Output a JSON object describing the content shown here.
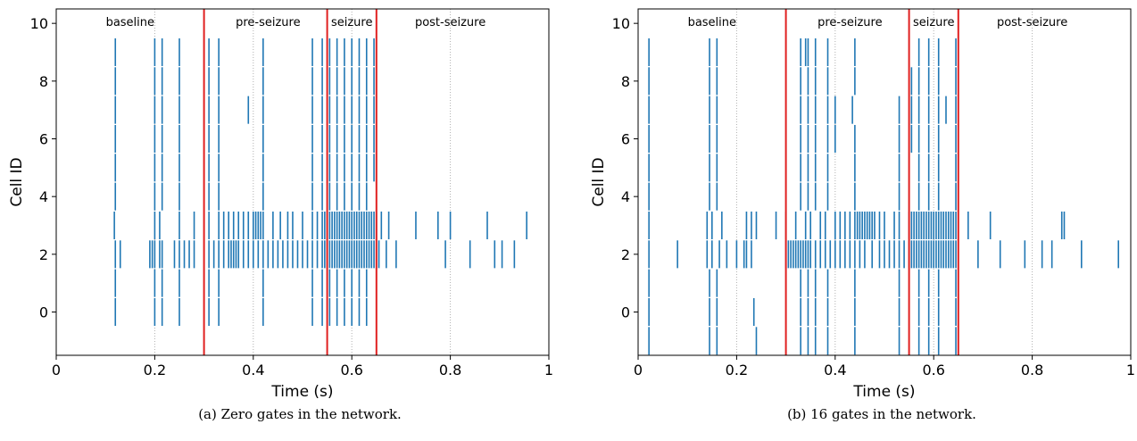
{
  "chart_data": [
    {
      "type": "scatter",
      "subtype": "raster",
      "xlabel": "Time (s)",
      "ylabel": "Cell ID",
      "xlim": [
        0,
        1
      ],
      "ylim": [
        -1.5,
        10.5
      ],
      "xticks": [
        "0",
        "0.2",
        "0.4",
        "0.6",
        "0.8",
        "1"
      ],
      "yticks": [
        "0",
        "2",
        "4",
        "6",
        "8",
        "10"
      ],
      "phase_boundaries": [
        0.3,
        0.55,
        0.65
      ],
      "phase_labels": [
        {
          "text": "baseline",
          "x": 0.15
        },
        {
          "text": "pre-seizure",
          "x": 0.43
        },
        {
          "text": "seizure",
          "x": 0.6
        },
        {
          "text": "post-seizure",
          "x": 0.8
        }
      ],
      "gridlines_x": [
        0.2,
        0.4,
        0.6,
        0.8
      ],
      "colors": {
        "spikes": "#1f77b4",
        "boundaries": "#e02020",
        "grid": "#b0b0b0"
      },
      "caption": "(a) Zero gates in the network.",
      "cells": [
        {
          "id": 0,
          "spikes": [
            0.12,
            0.2,
            0.215,
            0.25,
            0.31,
            0.33,
            0.42,
            0.52,
            0.54,
            0.555,
            0.57,
            0.585,
            0.6,
            0.615,
            0.63
          ]
        },
        {
          "id": 1,
          "spikes": [
            0.12,
            0.2,
            0.215,
            0.25,
            0.31,
            0.33,
            0.42,
            0.52,
            0.54,
            0.555,
            0.57,
            0.585,
            0.6,
            0.615,
            0.63
          ]
        },
        {
          "id": 2,
          "spikes": [
            0.12,
            0.13,
            0.19,
            0.195,
            0.2,
            0.21,
            0.215,
            0.24,
            0.25,
            0.26,
            0.27,
            0.28,
            0.31,
            0.32,
            0.33,
            0.34,
            0.35,
            0.355,
            0.36,
            0.365,
            0.37,
            0.38,
            0.39,
            0.4,
            0.41,
            0.42,
            0.43,
            0.44,
            0.45,
            0.46,
            0.47,
            0.48,
            0.49,
            0.5,
            0.51,
            0.52,
            0.53,
            0.54,
            0.545,
            0.55,
            0.555,
            0.56,
            0.565,
            0.57,
            0.575,
            0.58,
            0.585,
            0.59,
            0.595,
            0.6,
            0.605,
            0.61,
            0.615,
            0.62,
            0.625,
            0.63,
            0.635,
            0.64,
            0.645,
            0.65,
            0.655,
            0.67,
            0.69,
            0.79,
            0.84,
            0.89,
            0.905,
            0.93
          ]
        },
        {
          "id": 3,
          "spikes": [
            0.118,
            0.2,
            0.21,
            0.25,
            0.28,
            0.31,
            0.33,
            0.34,
            0.35,
            0.36,
            0.37,
            0.38,
            0.39,
            0.4,
            0.405,
            0.41,
            0.415,
            0.42,
            0.44,
            0.455,
            0.47,
            0.48,
            0.5,
            0.52,
            0.53,
            0.54,
            0.545,
            0.55,
            0.555,
            0.56,
            0.565,
            0.57,
            0.575,
            0.58,
            0.585,
            0.59,
            0.595,
            0.6,
            0.605,
            0.61,
            0.615,
            0.62,
            0.625,
            0.63,
            0.635,
            0.64,
            0.645,
            0.65,
            0.66,
            0.675,
            0.73,
            0.775,
            0.8,
            0.875,
            0.955
          ]
        },
        {
          "id": 4,
          "spikes": [
            0.12,
            0.2,
            0.215,
            0.25,
            0.31,
            0.33,
            0.42,
            0.52,
            0.54,
            0.555,
            0.57,
            0.585,
            0.6,
            0.615,
            0.63
          ]
        },
        {
          "id": 5,
          "spikes": [
            0.12,
            0.2,
            0.215,
            0.25,
            0.31,
            0.33,
            0.42,
            0.52,
            0.54,
            0.555,
            0.57,
            0.585,
            0.6,
            0.615,
            0.63,
            0.645
          ]
        },
        {
          "id": 6,
          "spikes": [
            0.12,
            0.2,
            0.215,
            0.25,
            0.31,
            0.33,
            0.42,
            0.52,
            0.54,
            0.555,
            0.57,
            0.585,
            0.6,
            0.615,
            0.63,
            0.645
          ]
        },
        {
          "id": 7,
          "spikes": [
            0.12,
            0.2,
            0.215,
            0.25,
            0.31,
            0.33,
            0.39,
            0.42,
            0.52,
            0.54,
            0.555,
            0.57,
            0.585,
            0.6,
            0.615,
            0.63,
            0.645
          ]
        },
        {
          "id": 8,
          "spikes": [
            0.12,
            0.2,
            0.215,
            0.25,
            0.31,
            0.33,
            0.42,
            0.52,
            0.54,
            0.555,
            0.57,
            0.585,
            0.6,
            0.615,
            0.63,
            0.645
          ]
        },
        {
          "id": 9,
          "spikes": [
            0.12,
            0.2,
            0.215,
            0.25,
            0.31,
            0.33,
            0.42,
            0.52,
            0.54,
            0.555,
            0.57,
            0.585,
            0.6,
            0.615,
            0.63,
            0.645
          ]
        }
      ]
    },
    {
      "type": "scatter",
      "subtype": "raster",
      "xlabel": "Time (s)",
      "ylabel": "Cell ID",
      "xlim": [
        0,
        1
      ],
      "ylim": [
        -1.5,
        10.5
      ],
      "xticks": [
        "0",
        "0.2",
        "0.4",
        "0.6",
        "0.8",
        "1"
      ],
      "yticks": [
        "0",
        "2",
        "4",
        "6",
        "8",
        "10"
      ],
      "phase_boundaries": [
        0.3,
        0.55,
        0.65
      ],
      "phase_labels": [
        {
          "text": "baseline",
          "x": 0.15
        },
        {
          "text": "pre-seizure",
          "x": 0.43
        },
        {
          "text": "seizure",
          "x": 0.6
        },
        {
          "text": "post-seizure",
          "x": 0.8
        }
      ],
      "gridlines_x": [
        0.2,
        0.4,
        0.6,
        0.8
      ],
      "colors": {
        "spikes": "#1f77b4",
        "boundaries": "#e02020",
        "grid": "#b0b0b0"
      },
      "caption": "(b) 16 gates in the network.",
      "cells": [
        {
          "id": -1,
          "spikes": [
            0.022,
            0.145,
            0.16,
            0.24,
            0.33,
            0.345,
            0.36,
            0.385,
            0.44,
            0.53,
            0.57,
            0.59,
            0.61,
            0.645
          ]
        },
        {
          "id": 0,
          "spikes": [
            0.022,
            0.145,
            0.16,
            0.235,
            0.33,
            0.345,
            0.36,
            0.385,
            0.44,
            0.53,
            0.57,
            0.59,
            0.61,
            0.645
          ]
        },
        {
          "id": 1,
          "spikes": [
            0.022,
            0.145,
            0.16,
            0.33,
            0.345,
            0.36,
            0.385,
            0.44,
            0.53,
            0.57,
            0.59,
            0.61,
            0.645
          ]
        },
        {
          "id": 2,
          "spikes": [
            0.022,
            0.08,
            0.14,
            0.15,
            0.165,
            0.18,
            0.2,
            0.215,
            0.22,
            0.23,
            0.3,
            0.305,
            0.31,
            0.315,
            0.32,
            0.325,
            0.33,
            0.335,
            0.34,
            0.345,
            0.35,
            0.36,
            0.37,
            0.38,
            0.39,
            0.4,
            0.41,
            0.42,
            0.43,
            0.44,
            0.45,
            0.46,
            0.475,
            0.49,
            0.5,
            0.51,
            0.52,
            0.53,
            0.54,
            0.55,
            0.555,
            0.56,
            0.565,
            0.57,
            0.575,
            0.58,
            0.585,
            0.59,
            0.595,
            0.6,
            0.605,
            0.61,
            0.615,
            0.62,
            0.625,
            0.63,
            0.635,
            0.64,
            0.645,
            0.69,
            0.735,
            0.785,
            0.82,
            0.84,
            0.9,
            0.975
          ]
        },
        {
          "id": 3,
          "spikes": [
            0.022,
            0.14,
            0.15,
            0.17,
            0.22,
            0.23,
            0.24,
            0.28,
            0.3,
            0.32,
            0.34,
            0.35,
            0.37,
            0.38,
            0.4,
            0.41,
            0.42,
            0.43,
            0.44,
            0.445,
            0.45,
            0.455,
            0.46,
            0.465,
            0.47,
            0.475,
            0.48,
            0.49,
            0.5,
            0.52,
            0.53,
            0.55,
            0.555,
            0.56,
            0.565,
            0.57,
            0.575,
            0.58,
            0.585,
            0.59,
            0.595,
            0.6,
            0.605,
            0.61,
            0.615,
            0.62,
            0.625,
            0.63,
            0.635,
            0.64,
            0.645,
            0.67,
            0.715,
            0.86,
            0.865
          ]
        },
        {
          "id": 4,
          "spikes": [
            0.022,
            0.145,
            0.16,
            0.33,
            0.345,
            0.36,
            0.385,
            0.44,
            0.53,
            0.57,
            0.59,
            0.61,
            0.645
          ]
        },
        {
          "id": 5,
          "spikes": [
            0.022,
            0.145,
            0.16,
            0.33,
            0.345,
            0.36,
            0.385,
            0.44,
            0.53,
            0.57,
            0.59,
            0.61,
            0.645
          ]
        },
        {
          "id": 6,
          "spikes": [
            0.022,
            0.145,
            0.16,
            0.33,
            0.345,
            0.36,
            0.385,
            0.4,
            0.44,
            0.53,
            0.555,
            0.57,
            0.59,
            0.61,
            0.645
          ]
        },
        {
          "id": 7,
          "spikes": [
            0.022,
            0.145,
            0.16,
            0.33,
            0.345,
            0.36,
            0.385,
            0.4,
            0.435,
            0.53,
            0.555,
            0.57,
            0.59,
            0.61,
            0.625,
            0.645
          ]
        },
        {
          "id": 8,
          "spikes": [
            0.022,
            0.145,
            0.16,
            0.33,
            0.345,
            0.36,
            0.385,
            0.44,
            0.555,
            0.57,
            0.59,
            0.61,
            0.645
          ]
        },
        {
          "id": 9,
          "spikes": [
            0.022,
            0.145,
            0.16,
            0.33,
            0.34,
            0.345,
            0.36,
            0.385,
            0.44,
            0.57,
            0.59,
            0.61,
            0.645
          ]
        }
      ]
    }
  ]
}
